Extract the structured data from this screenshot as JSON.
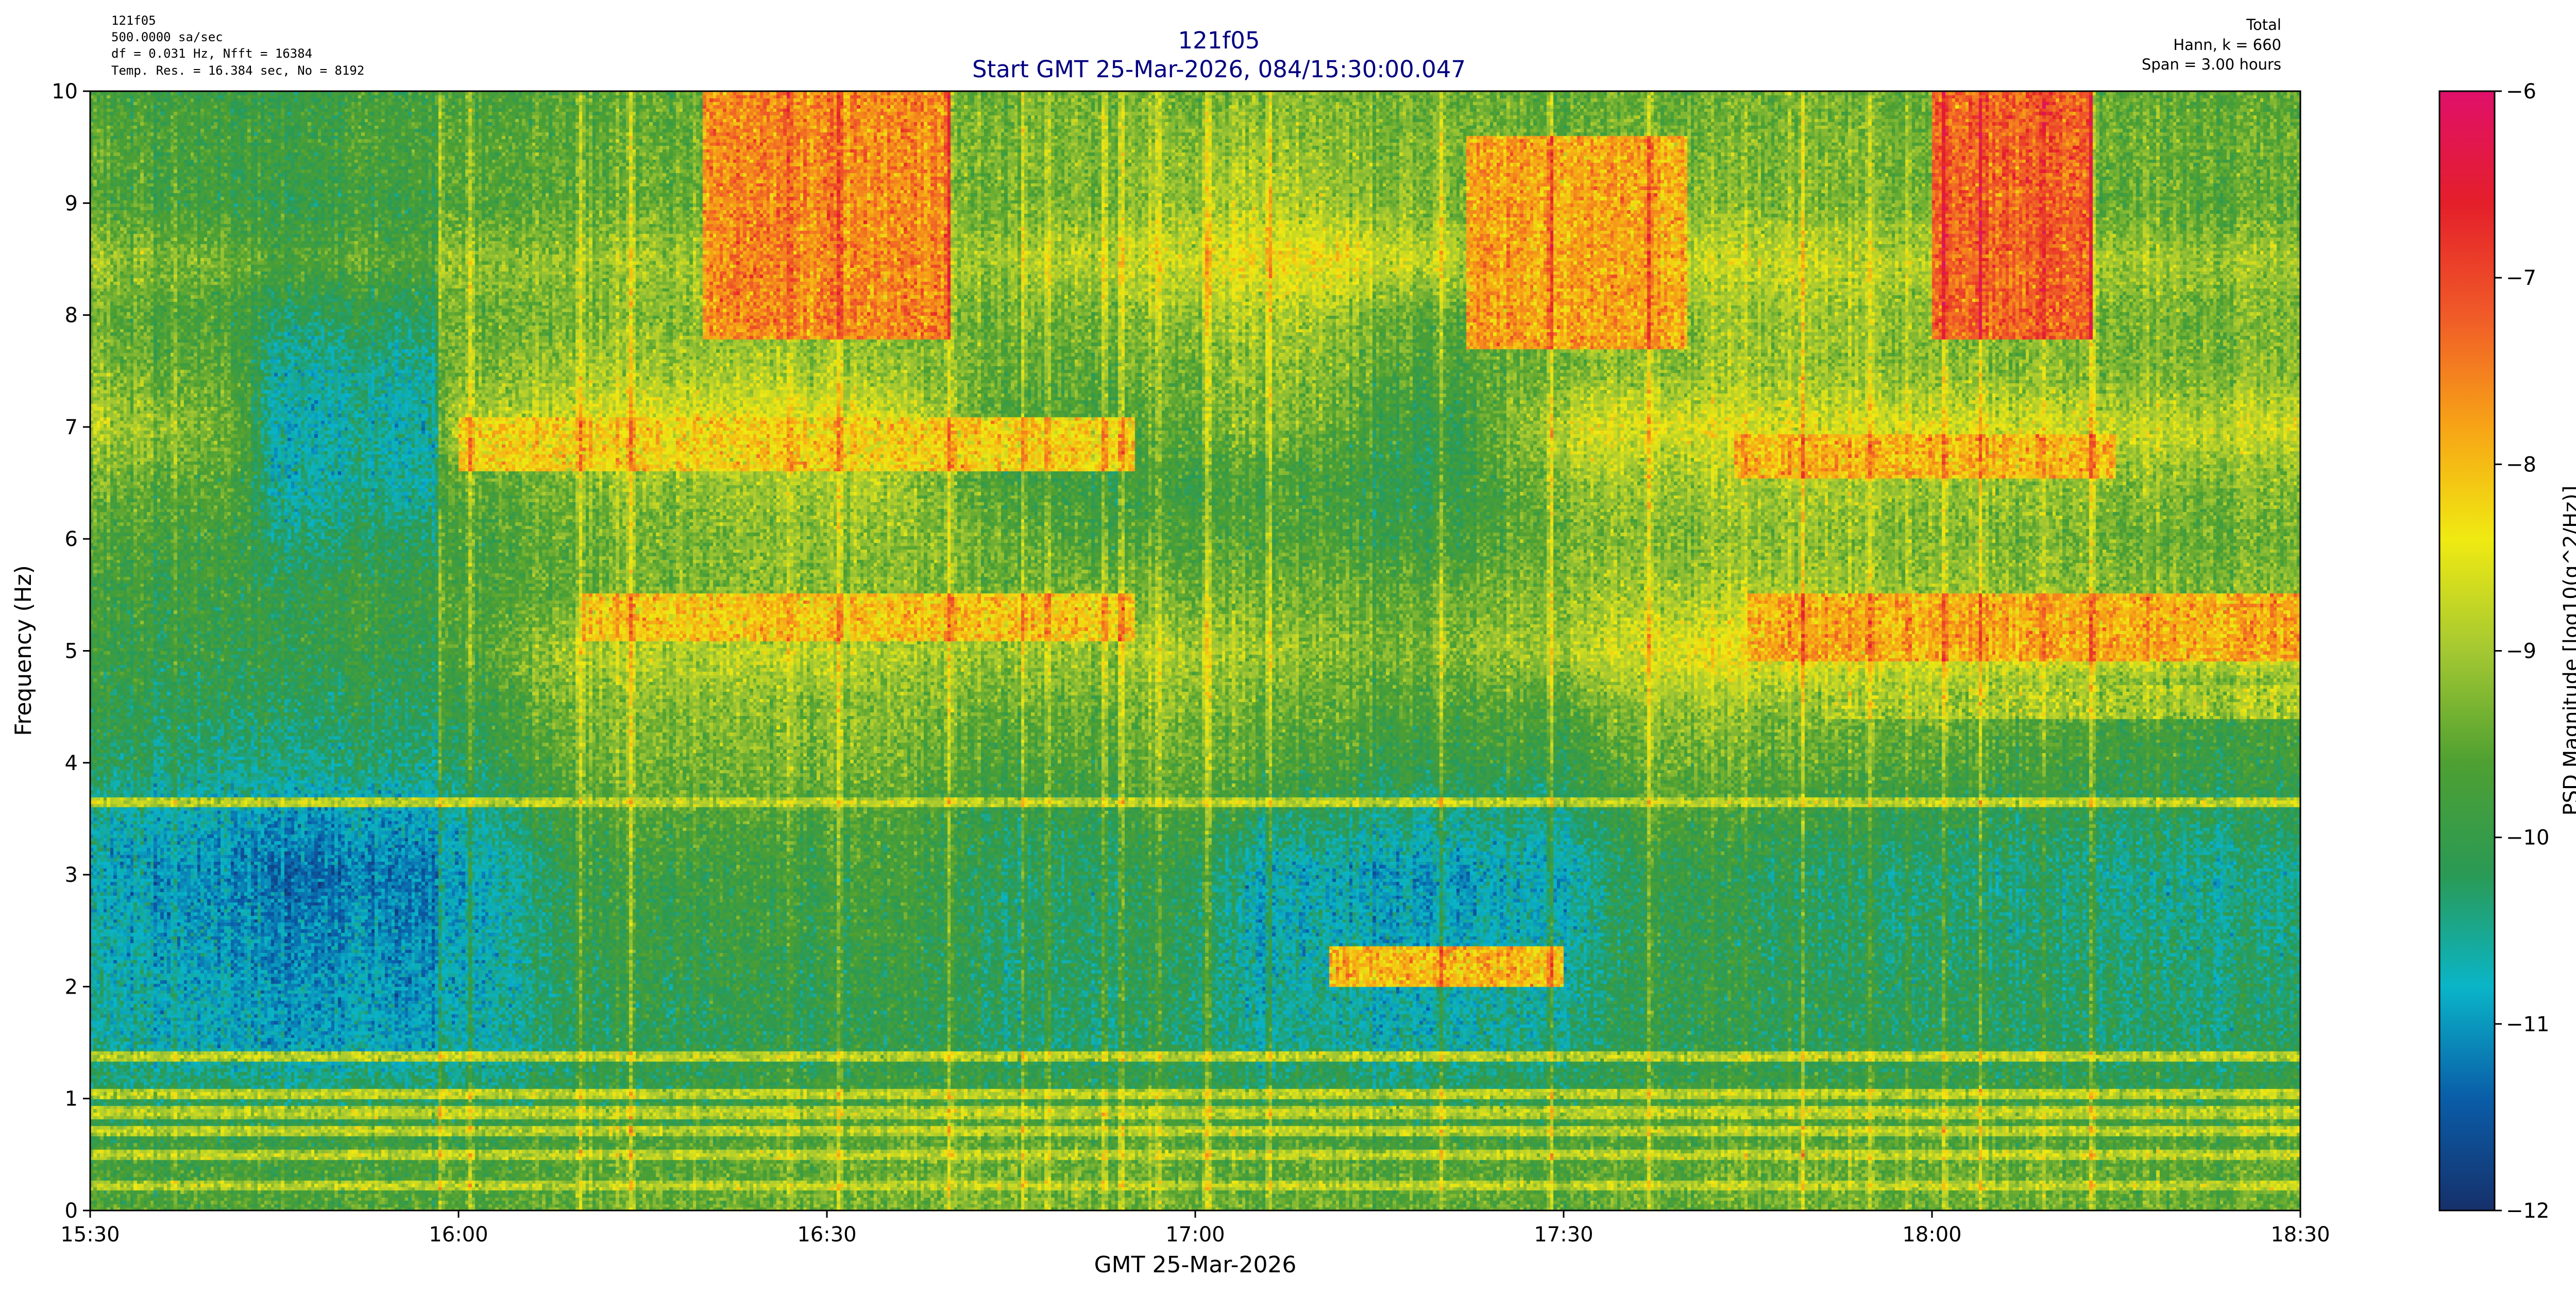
{
  "header": {
    "left_info": [
      "121f05",
      "500.0000 sa/sec",
      "df = 0.031 Hz,  Nfft = 16384",
      "Temp. Res. = 16.384 sec, No = 8192"
    ],
    "title": "121f05",
    "subtitle": "Start GMT 25-Mar-2026, 084/15:30:00.047",
    "right_info": [
      "Total",
      "Hann, k = 660",
      "Span = 3.00 hours"
    ],
    "title_color": "#000080"
  },
  "chart_data": {
    "type": "heatmap",
    "title": "121f05",
    "subtitle": "Start GMT 25-Mar-2026, 084/15:30:00.047",
    "xlabel": "GMT 25-Mar-2026",
    "ylabel": "Frequency (Hz)",
    "colorbar_label": "PSD Magnitude [log10(g^2/Hz)]",
    "x_range_minutes_after_1530": [
      0,
      180
    ],
    "x_ticks": [
      "15:30",
      "16:00",
      "16:30",
      "17:00",
      "17:30",
      "18:00",
      "18:30"
    ],
    "ylim": [
      0,
      10
    ],
    "y_ticks": [
      "0",
      "1",
      "2",
      "3",
      "4",
      "5",
      "6",
      "7",
      "8",
      "9",
      "10"
    ],
    "clim": [
      -12,
      -6
    ],
    "c_ticks": [
      "−12",
      "−11",
      "−10",
      "−9",
      "−8",
      "−7",
      "−6"
    ],
    "colormap": [
      "#16306a",
      "#0a5da8",
      "#0ab5c8",
      "#2a9a55",
      "#4ea032",
      "#a4c832",
      "#f0ea12",
      "#f7a416",
      "#f05a28",
      "#e41f2a",
      "#e0106a"
    ],
    "baseline_dB": {
      "time_minutes": [
        0,
        12,
        15,
        28,
        29.5,
        40,
        48,
        60,
        64,
        75,
        82,
        90,
        95,
        100,
        110,
        121,
        128,
        140,
        152,
        165,
        180
      ],
      "freq_hz": [
        0,
        0.5,
        1,
        1.5,
        2,
        2.5,
        3,
        3.5,
        4,
        4.5,
        5,
        5.5,
        6,
        6.5,
        7,
        7.5,
        8,
        8.5,
        9,
        9.5,
        10
      ],
      "rows_by_freq": [
        [
          -9.6,
          -9.6,
          -9.6,
          -9.6,
          -9.6,
          -9.4,
          -9.4,
          -9.4,
          -9.4,
          -9.3,
          -9.3,
          -9.3,
          -9.5,
          -9.4,
          -9.5,
          -9.5,
          -9.4,
          -9.4,
          -9.4,
          -9.4,
          -9.5
        ],
        [
          -9.8,
          -9.8,
          -9.8,
          -9.8,
          -9.8,
          -9.6,
          -9.6,
          -9.5,
          -9.4,
          -9.4,
          -9.4,
          -9.4,
          -9.6,
          -9.5,
          -9.7,
          -9.6,
          -9.5,
          -9.5,
          -9.5,
          -9.6,
          -9.6
        ],
        [
          -10.2,
          -10.2,
          -10.2,
          -10.2,
          -10.3,
          -10.0,
          -10.0,
          -9.9,
          -9.8,
          -9.9,
          -9.9,
          -9.8,
          -10.1,
          -10.0,
          -10.2,
          -10.0,
          -9.8,
          -9.9,
          -9.9,
          -10.0,
          -10.0
        ],
        [
          -10.5,
          -10.8,
          -10.9,
          -10.9,
          -10.8,
          -10.2,
          -10.1,
          -10.1,
          -10.0,
          -10.3,
          -10.3,
          -10.2,
          -10.6,
          -10.5,
          -10.7,
          -10.4,
          -10.0,
          -10.2,
          -10.2,
          -10.3,
          -10.3
        ],
        [
          -10.6,
          -10.9,
          -11.0,
          -11.0,
          -10.9,
          -10.1,
          -10.0,
          -10.1,
          -9.9,
          -10.3,
          -10.2,
          -10.1,
          -10.7,
          -10.6,
          -10.8,
          -10.5,
          -9.9,
          -10.2,
          -10.2,
          -10.3,
          -10.4
        ],
        [
          -10.7,
          -11.0,
          -11.1,
          -11.1,
          -11.0,
          -10.0,
          -9.9,
          -10.0,
          -9.8,
          -10.3,
          -10.2,
          -10.0,
          -10.8,
          -10.7,
          -10.9,
          -10.6,
          -9.9,
          -10.3,
          -10.3,
          -10.4,
          -10.5
        ],
        [
          -10.8,
          -11.1,
          -11.3,
          -11.2,
          -11.1,
          -10.0,
          -9.9,
          -9.9,
          -9.7,
          -10.3,
          -10.2,
          -10.0,
          -10.8,
          -10.8,
          -11.0,
          -10.7,
          -9.9,
          -10.3,
          -10.4,
          -10.5,
          -10.6
        ],
        [
          -10.6,
          -10.9,
          -11.0,
          -10.9,
          -10.8,
          -9.7,
          -9.6,
          -9.7,
          -9.6,
          -10.1,
          -10.0,
          -9.6,
          -10.2,
          -10.3,
          -10.5,
          -10.4,
          -9.6,
          -10.0,
          -10.1,
          -10.2,
          -10.3
        ],
        [
          -10.2,
          -10.4,
          -10.4,
          -10.4,
          -10.3,
          -9.4,
          -9.3,
          -9.3,
          -9.3,
          -9.8,
          -9.6,
          -9.3,
          -9.6,
          -9.8,
          -10.0,
          -9.9,
          -9.3,
          -9.6,
          -9.7,
          -9.9,
          -10.0
        ],
        [
          -10.0,
          -10.2,
          -10.2,
          -10.2,
          -10.1,
          -9.2,
          -9.2,
          -9.2,
          -9.2,
          -9.5,
          -9.4,
          -9.1,
          -9.4,
          -9.5,
          -9.7,
          -9.6,
          -9.0,
          -9.3,
          -9.4,
          -9.7,
          -9.8
        ],
        [
          -9.9,
          -10.0,
          -10.0,
          -10.0,
          -9.8,
          -8.9,
          -8.8,
          -8.8,
          -8.9,
          -9.1,
          -9.0,
          -8.8,
          -9.0,
          -9.2,
          -9.3,
          -8.9,
          -8.4,
          -8.4,
          -8.5,
          -8.5,
          -8.6
        ],
        [
          -9.8,
          -9.9,
          -10.0,
          -9.9,
          -9.7,
          -9.4,
          -9.3,
          -9.2,
          -9.2,
          -9.4,
          -9.3,
          -9.3,
          -9.3,
          -9.4,
          -9.5,
          -9.1,
          -8.9,
          -9.0,
          -9.1,
          -9.2,
          -9.3
        ],
        [
          -9.6,
          -9.8,
          -10.3,
          -10.2,
          -9.8,
          -9.4,
          -9.3,
          -9.2,
          -9.1,
          -9.5,
          -9.7,
          -9.6,
          -9.6,
          -9.7,
          -9.9,
          -9.3,
          -9.2,
          -9.2,
          -9.3,
          -9.4,
          -9.5
        ],
        [
          -9.4,
          -9.6,
          -10.6,
          -10.6,
          -9.6,
          -9.2,
          -9.1,
          -9.0,
          -8.9,
          -9.8,
          -9.9,
          -9.8,
          -9.7,
          -9.8,
          -10.1,
          -9.1,
          -9.0,
          -9.0,
          -9.1,
          -9.2,
          -9.3
        ],
        [
          -8.8,
          -9.4,
          -10.7,
          -10.6,
          -9.0,
          -8.5,
          -8.4,
          -8.4,
          -8.4,
          -9.8,
          -9.7,
          -9.4,
          -9.2,
          -9.4,
          -10.1,
          -8.6,
          -8.5,
          -8.6,
          -8.6,
          -8.7,
          -8.8
        ],
        [
          -9.2,
          -9.6,
          -10.6,
          -10.5,
          -9.3,
          -9.0,
          -9.0,
          -9.0,
          -9.0,
          -9.5,
          -9.5,
          -9.3,
          -9.1,
          -9.2,
          -9.8,
          -9.2,
          -9.1,
          -9.1,
          -9.2,
          -9.3,
          -9.3
        ],
        [
          -9.4,
          -9.8,
          -10.2,
          -10.2,
          -9.4,
          -9.3,
          -9.2,
          -9.2,
          -9.3,
          -9.4,
          -9.3,
          -9.0,
          -8.9,
          -9.0,
          -9.6,
          -9.3,
          -9.1,
          -9.1,
          -9.2,
          -9.3,
          -9.4
        ],
        [
          -9.0,
          -9.4,
          -9.6,
          -9.6,
          -9.1,
          -9.1,
          -9.0,
          -9.0,
          -9.1,
          -9.0,
          -8.8,
          -8.5,
          -8.3,
          -8.4,
          -8.8,
          -9.0,
          -8.7,
          -8.8,
          -8.9,
          -9.0,
          -9.1
        ],
        [
          -9.6,
          -9.9,
          -10.0,
          -9.9,
          -9.7,
          -9.5,
          -9.4,
          -9.4,
          -9.5,
          -9.4,
          -9.3,
          -9.0,
          -8.8,
          -9.0,
          -9.3,
          -9.4,
          -9.2,
          -9.3,
          -9.4,
          -9.5,
          -9.6
        ],
        [
          -9.5,
          -9.8,
          -9.8,
          -9.7,
          -9.6,
          -9.5,
          -9.4,
          -9.3,
          -9.4,
          -9.3,
          -9.2,
          -9.1,
          -9.0,
          -9.2,
          -9.3,
          -9.4,
          -9.3,
          -9.3,
          -9.4,
          -9.4,
          -9.5
        ],
        [
          -9.7,
          -9.9,
          -9.9,
          -9.8,
          -9.7,
          -9.6,
          -9.5,
          -9.4,
          -9.5,
          -9.4,
          -9.3,
          -9.3,
          -9.2,
          -9.3,
          -9.4,
          -9.5,
          -9.4,
          -9.4,
          -9.5,
          -9.5,
          -9.6
        ]
      ]
    },
    "narrow_lines_hz": [
      0.22,
      0.5,
      0.72,
      0.88,
      1.05,
      1.38,
      3.65
    ],
    "features": [
      {
        "t0": 50,
        "t1": 70,
        "f0": 7.8,
        "f1": 10,
        "level": -7.6
      },
      {
        "t0": 112,
        "t1": 130,
        "f0": 7.7,
        "f1": 9.6,
        "level": -7.8
      },
      {
        "t0": 150,
        "t1": 163,
        "f0": 7.8,
        "f1": 10,
        "level": -7.3
      },
      {
        "t0": 30,
        "t1": 85,
        "f0": 6.6,
        "f1": 7.1,
        "level": -8.2
      },
      {
        "t0": 134,
        "t1": 165,
        "f0": 6.55,
        "f1": 6.95,
        "level": -8.0
      },
      {
        "t0": 40,
        "t1": 85,
        "f0": 5.1,
        "f1": 5.5,
        "level": -8.1
      },
      {
        "t0": 135,
        "t1": 180,
        "f0": 4.9,
        "f1": 5.5,
        "level": -7.9
      },
      {
        "t0": 101,
        "t1": 120,
        "f0": 2.0,
        "f1": 2.35,
        "level": -8.0
      },
      {
        "t0": 141,
        "t1": 180,
        "f0": 4.4,
        "f1": 4.7,
        "level": -9.0
      }
    ],
    "vertical_streak_minutes": [
      28.6,
      31,
      40,
      44,
      57,
      61,
      70,
      76,
      78,
      82.6,
      84,
      87,
      91,
      96,
      110,
      119,
      127,
      139.5,
      145,
      148,
      151,
      154,
      159,
      163
    ]
  }
}
